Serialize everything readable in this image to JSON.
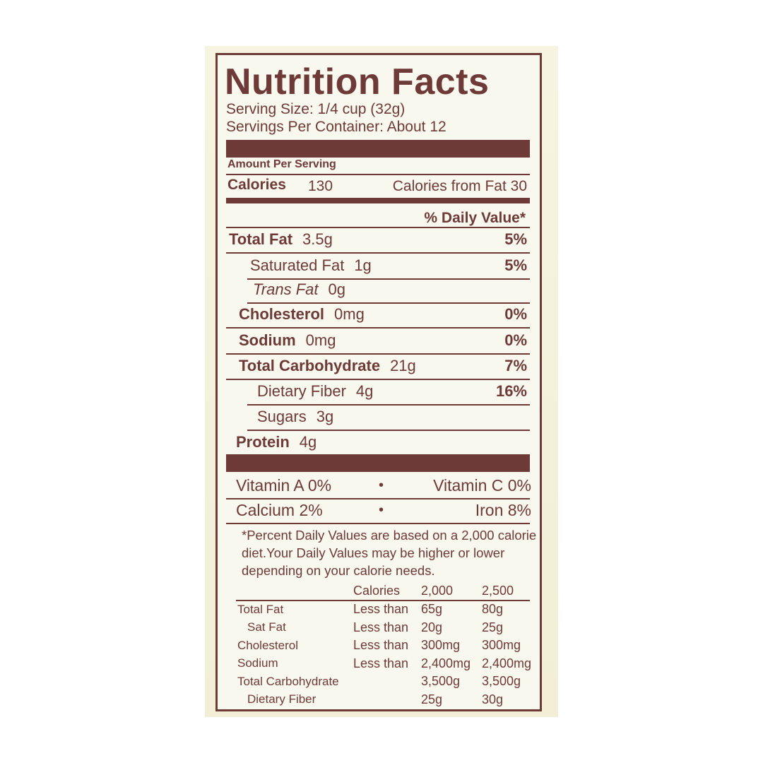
{
  "title": "Nutrition Facts",
  "serving_size": "Serving Size: 1/4 cup (32g)",
  "servings_per_container": "Servings Per Container: About 12",
  "amount_per_serving": "Amount Per Serving",
  "calories": {
    "label": "Calories",
    "value": "130",
    "from_fat": "Calories from Fat 30"
  },
  "daily_value_header": "% Daily Value*",
  "nutrients": [
    {
      "name": "Total Fat",
      "amount": "3.5g",
      "dv": "5%"
    },
    {
      "name": "Saturated Fat",
      "amount": "1g",
      "dv": "5%"
    },
    {
      "name": "Trans Fat",
      "amount": "0g"
    },
    {
      "name": "Cholesterol",
      "amount": "0mg",
      "dv": "0%"
    },
    {
      "name": "Sodium",
      "amount": "0mg",
      "dv": "0%"
    },
    {
      "name": "Total Carbohydrate",
      "amount": "21g",
      "dv": "7%"
    },
    {
      "name": "Dietary Fiber",
      "amount": "4g",
      "dv": "16%"
    },
    {
      "name": "Sugars",
      "amount": "3g"
    },
    {
      "name": "Protein",
      "amount": "4g"
    }
  ],
  "vitamins": [
    [
      "Vitamin A 0%",
      "Vitamin C 0%"
    ],
    [
      "Calcium 2%",
      "Iron 8%"
    ]
  ],
  "footnote": [
    "*Percent Daily Values are based on a 2,000 calorie",
    "diet.Your Daily Values may be higher or lower",
    "depending on your calorie needs."
  ],
  "reference_table": {
    "header": [
      "Calories",
      "2,000",
      "2,500"
    ],
    "rows": [
      {
        "name": "Total Fat",
        "limit": "Less than",
        "v2000": "65g",
        "v2500": "80g"
      },
      {
        "name": "Sat Fat",
        "limit": "Less than",
        "v2000": "20g",
        "v2500": "25g"
      },
      {
        "name": "Cholesterol",
        "limit": "Less than",
        "v2000": "300mg",
        "v2500": "300mg"
      },
      {
        "name": "Sodium",
        "limit": "Less than",
        "v2000": "2,400mg",
        "v2500": "2,400mg"
      },
      {
        "name": "Total Carbohydrate",
        "v2000": "3,500g",
        "v2500": "3,500g"
      },
      {
        "name": "Dietary Fiber",
        "v2000": "25g",
        "v2500": "30g"
      }
    ]
  }
}
